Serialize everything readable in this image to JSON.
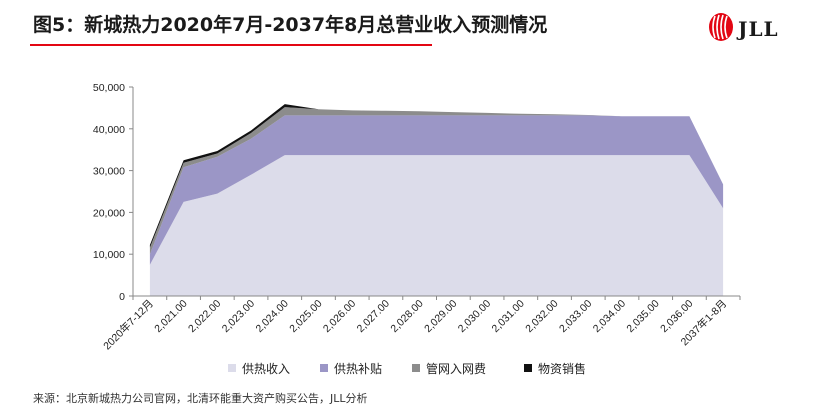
{
  "header": {
    "title": "图5：新城热力2020年7月-2037年8月总营业收入预测情况",
    "logo_text": "JLL",
    "accent_color": "#e30613"
  },
  "chart_data": {
    "type": "area",
    "stacked": true,
    "categories": [
      "2020年7-12月",
      "2,021.00",
      "2,022.00",
      "2,023.00",
      "2,024.00",
      "2,025.00",
      "2,026.00",
      "2,027.00",
      "2,028.00",
      "2,029.00",
      "2,030.00",
      "2,031.00",
      "2,032.00",
      "2,033.00",
      "2,034.00",
      "2,035.00",
      "2,036.00",
      "2037年1-8月"
    ],
    "series": [
      {
        "name": "供热收入",
        "color": "#dcdcea",
        "values": [
          7500,
          22500,
          24500,
          29000,
          33700,
          33700,
          33700,
          33700,
          33700,
          33700,
          33700,
          33700,
          33700,
          33700,
          33700,
          33700,
          33700,
          21000
        ]
      },
      {
        "name": "供热补贴",
        "color": "#9b96c6",
        "values": [
          2500,
          8300,
          8800,
          8600,
          9500,
          9500,
          9500,
          9500,
          9500,
          9500,
          9500,
          9500,
          9500,
          9500,
          9300,
          9300,
          9300,
          5700
        ]
      },
      {
        "name": "管网入网费",
        "color": "#8c8c8c",
        "values": [
          1600,
          1100,
          800,
          1400,
          2000,
          1500,
          1200,
          1100,
          1000,
          800,
          600,
          400,
          300,
          100,
          0,
          0,
          0,
          0
        ]
      },
      {
        "name": "物资销售",
        "color": "#111111",
        "values": [
          600,
          600,
          600,
          600,
          700,
          0,
          0,
          0,
          0,
          0,
          0,
          0,
          0,
          0,
          0,
          0,
          0,
          0
        ]
      }
    ],
    "yticks": [
      "0",
      "10,000",
      "20,000",
      "30,000",
      "40,000",
      "50,000"
    ],
    "ylim": [
      0,
      50000
    ],
    "grid": false,
    "legend_position": "bottom"
  },
  "source": "来源：北京新城热力公司官网，北清环能重大资产购买公告，JLL分析"
}
